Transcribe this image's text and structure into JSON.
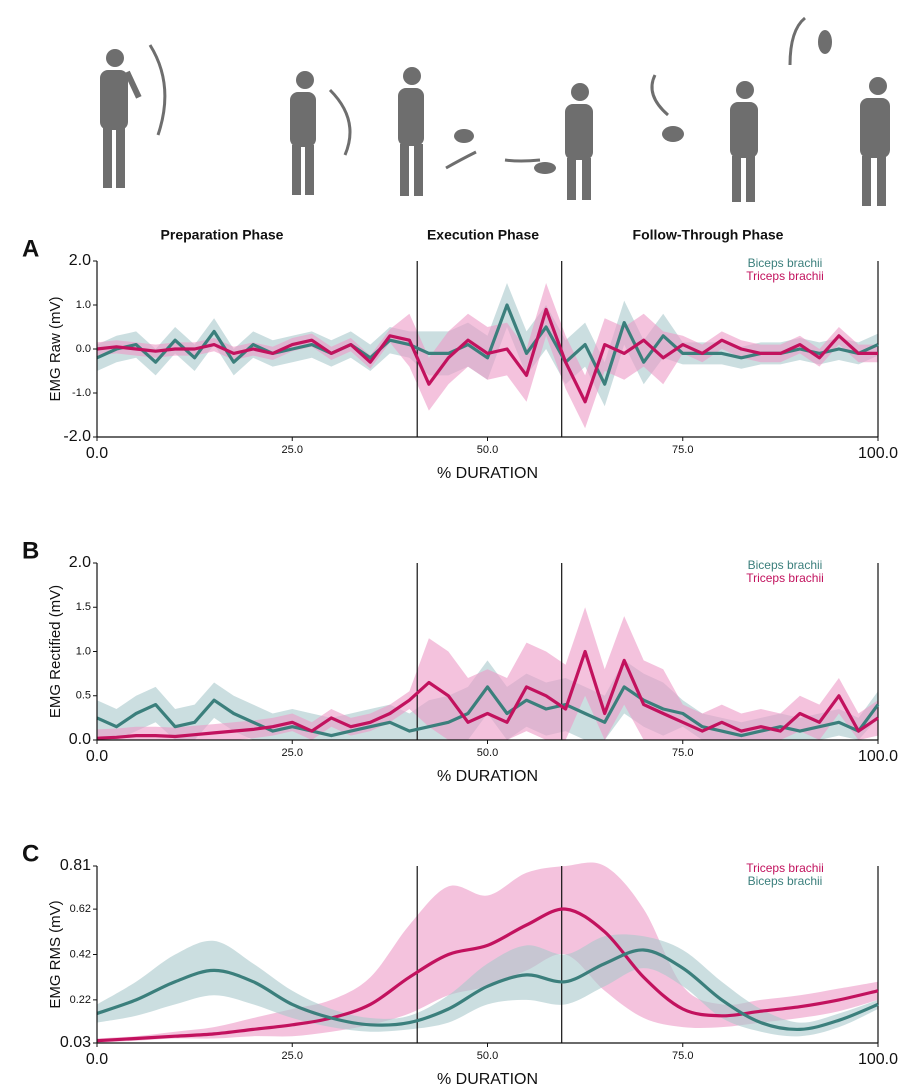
{
  "phases": [
    "Preparation Phase",
    "Execution Phase",
    "Follow-Through Phase"
  ],
  "chart_data": [
    {
      "panel": "A",
      "type": "line",
      "ylabel": "EMG Raw (mV)",
      "xlabel": "% DURATION",
      "legend": "upper right",
      "smooth": false,
      "x": [
        0,
        2.5,
        5,
        7.5,
        10,
        12.5,
        15,
        17.5,
        20,
        22.5,
        25,
        27.5,
        30,
        32.5,
        35,
        37.5,
        40,
        42.5,
        45,
        47.5,
        50,
        52.5,
        55,
        57.5,
        60,
        62.5,
        65,
        67.5,
        70,
        72.5,
        75,
        77.5,
        80,
        82.5,
        85,
        87.5,
        90,
        92.5,
        95,
        97.5,
        100
      ],
      "xlim": [
        0,
        100
      ],
      "xticks": [
        {
          "value": 0,
          "label": "0.0"
        },
        {
          "value": 25,
          "label": "25.0"
        },
        {
          "value": 50,
          "label": "50.0"
        },
        {
          "value": 75,
          "label": "75.0"
        },
        {
          "value": 100,
          "label": "100.0"
        }
      ],
      "ylim": [
        -2,
        2
      ],
      "yticks": [
        {
          "value": 2,
          "label": "2.0"
        },
        {
          "value": 1,
          "label": "1.0"
        },
        {
          "value": 0,
          "label": "0.0"
        },
        {
          "value": -1,
          "label": "-1.0"
        },
        {
          "value": -2,
          "label": "-2.0"
        }
      ],
      "vlines": [
        41,
        59.5,
        100
      ],
      "series": [
        {
          "name": "Biceps brachii",
          "color": "#3b7f7c",
          "band_color": "#a9c8cc",
          "values": [
            -0.2,
            0.0,
            0.1,
            -0.3,
            0.2,
            -0.2,
            0.4,
            -0.3,
            0.1,
            -0.1,
            0.0,
            0.1,
            -0.1,
            0.1,
            -0.2,
            0.2,
            0.1,
            -0.1,
            -0.1,
            0.1,
            -0.2,
            1.0,
            -0.1,
            0.5,
            -0.3,
            0.1,
            -0.8,
            0.6,
            -0.3,
            0.3,
            -0.1,
            -0.1,
            -0.1,
            -0.2,
            -0.1,
            -0.1,
            0.0,
            -0.1,
            0.0,
            -0.1,
            0.1
          ],
          "upper": [
            0.1,
            0.3,
            0.4,
            0.0,
            0.5,
            0.1,
            0.7,
            0.0,
            0.4,
            0.2,
            0.3,
            0.4,
            0.2,
            0.4,
            0.1,
            0.5,
            0.4,
            0.4,
            0.4,
            0.6,
            0.3,
            1.5,
            0.4,
            1.0,
            0.2,
            0.6,
            -0.3,
            1.1,
            0.2,
            0.8,
            0.15,
            0.15,
            0.15,
            0.05,
            0.15,
            0.15,
            0.25,
            0.15,
            0.25,
            0.15,
            0.35
          ],
          "lower": [
            -0.5,
            -0.3,
            -0.2,
            -0.6,
            -0.1,
            -0.5,
            0.1,
            -0.6,
            -0.2,
            -0.4,
            -0.3,
            -0.2,
            -0.4,
            -0.2,
            -0.5,
            -0.1,
            -0.2,
            -0.6,
            -0.6,
            -0.4,
            -0.7,
            0.5,
            -0.6,
            0.0,
            -0.8,
            -0.4,
            -1.3,
            0.1,
            -0.8,
            -0.2,
            -0.35,
            -0.35,
            -0.35,
            -0.45,
            -0.35,
            -0.35,
            -0.25,
            -0.35,
            -0.25,
            -0.35,
            -0.15
          ]
        },
        {
          "name": "Triceps brachii",
          "color": "#c2125e",
          "band_color": "#ec9ac6",
          "values": [
            0.0,
            0.05,
            0.0,
            -0.05,
            0.0,
            0.0,
            0.1,
            -0.1,
            0.0,
            -0.1,
            0.1,
            0.2,
            -0.1,
            0.1,
            -0.3,
            0.3,
            0.2,
            -0.8,
            -0.2,
            0.2,
            -0.1,
            0.0,
            -0.6,
            0.9,
            -0.3,
            -1.2,
            0.1,
            -0.1,
            0.2,
            -0.2,
            0.1,
            -0.1,
            0.2,
            0.0,
            -0.1,
            -0.1,
            0.1,
            -0.2,
            0.3,
            -0.1,
            -0.1
          ],
          "upper": [
            0.15,
            0.2,
            0.15,
            0.1,
            0.15,
            0.15,
            0.25,
            0.05,
            0.15,
            0.05,
            0.25,
            0.35,
            0.05,
            0.25,
            -0.15,
            0.45,
            0.8,
            -0.2,
            0.4,
            0.8,
            0.5,
            0.6,
            0.0,
            1.5,
            0.3,
            -0.6,
            0.7,
            0.5,
            0.8,
            0.4,
            0.3,
            0.1,
            0.4,
            0.2,
            0.1,
            0.1,
            0.3,
            0.0,
            0.5,
            0.1,
            0.1
          ],
          "lower": [
            -0.15,
            -0.1,
            -0.15,
            -0.2,
            -0.15,
            -0.15,
            -0.05,
            -0.25,
            -0.15,
            -0.25,
            -0.05,
            0.05,
            -0.25,
            -0.05,
            -0.45,
            0.15,
            -0.4,
            -1.4,
            -0.8,
            -0.4,
            -0.7,
            -0.6,
            -1.2,
            0.3,
            -0.9,
            -1.8,
            -0.5,
            -0.7,
            -0.4,
            -0.8,
            -0.1,
            -0.3,
            0.0,
            -0.2,
            -0.3,
            -0.3,
            -0.1,
            -0.4,
            0.1,
            -0.3,
            -0.3
          ]
        }
      ]
    },
    {
      "panel": "B",
      "type": "line",
      "ylabel": "EMG Rectified (mV)",
      "xlabel": "% DURATION",
      "legend": "upper right",
      "smooth": false,
      "x": [
        0,
        2.5,
        5,
        7.5,
        10,
        12.5,
        15,
        17.5,
        20,
        22.5,
        25,
        27.5,
        30,
        32.5,
        35,
        37.5,
        40,
        42.5,
        45,
        47.5,
        50,
        52.5,
        55,
        57.5,
        60,
        62.5,
        65,
        67.5,
        70,
        72.5,
        75,
        77.5,
        80,
        82.5,
        85,
        87.5,
        90,
        92.5,
        95,
        97.5,
        100
      ],
      "xlim": [
        0,
        100
      ],
      "xticks": [
        {
          "value": 0,
          "label": "0.0"
        },
        {
          "value": 25,
          "label": "25.0"
        },
        {
          "value": 50,
          "label": "50.0"
        },
        {
          "value": 75,
          "label": "75.0"
        },
        {
          "value": 100,
          "label": "100.0"
        }
      ],
      "ylim": [
        0,
        2
      ],
      "yticks": [
        {
          "value": 2,
          "label": "2.0"
        },
        {
          "value": 1.5,
          "label": "1.5"
        },
        {
          "value": 1,
          "label": "1.0"
        },
        {
          "value": 0.5,
          "label": "0.5"
        },
        {
          "value": 0,
          "label": "0.0"
        }
      ],
      "vlines": [
        41,
        59.5,
        100
      ],
      "series": [
        {
          "name": "Biceps brachii",
          "color": "#3b7f7c",
          "band_color": "#a9c8cc",
          "values": [
            0.25,
            0.15,
            0.3,
            0.4,
            0.15,
            0.2,
            0.45,
            0.3,
            0.2,
            0.1,
            0.15,
            0.1,
            0.05,
            0.1,
            0.15,
            0.2,
            0.1,
            0.15,
            0.2,
            0.3,
            0.6,
            0.3,
            0.45,
            0.35,
            0.4,
            0.3,
            0.2,
            0.6,
            0.45,
            0.35,
            0.3,
            0.15,
            0.1,
            0.05,
            0.1,
            0.15,
            0.1,
            0.15,
            0.2,
            0.1,
            0.4
          ],
          "upper": [
            0.45,
            0.35,
            0.5,
            0.6,
            0.35,
            0.4,
            0.65,
            0.5,
            0.4,
            0.3,
            0.35,
            0.3,
            0.25,
            0.3,
            0.35,
            0.4,
            0.3,
            0.45,
            0.5,
            0.6,
            0.9,
            0.6,
            0.75,
            0.65,
            0.7,
            0.6,
            0.5,
            0.9,
            0.75,
            0.65,
            0.45,
            0.3,
            0.25,
            0.2,
            0.25,
            0.3,
            0.25,
            0.3,
            0.35,
            0.25,
            0.55
          ],
          "lower": [
            0.05,
            0,
            0.1,
            0.2,
            0,
            0,
            0.25,
            0.1,
            0,
            0,
            0,
            0,
            0,
            0,
            0,
            0,
            0,
            0,
            0,
            0,
            0.3,
            0,
            0.15,
            0.05,
            0.1,
            0,
            0,
            0.3,
            0.15,
            0.05,
            0.15,
            0,
            0,
            0,
            0,
            0,
            0,
            0,
            0.05,
            0,
            0.25
          ]
        },
        {
          "name": "Triceps brachii",
          "color": "#c2125e",
          "band_color": "#ec9ac6",
          "values": [
            0.02,
            0.03,
            0.05,
            0.05,
            0.04,
            0.06,
            0.08,
            0.1,
            0.12,
            0.15,
            0.2,
            0.1,
            0.25,
            0.15,
            0.2,
            0.3,
            0.45,
            0.65,
            0.5,
            0.2,
            0.3,
            0.2,
            0.6,
            0.5,
            0.35,
            1.0,
            0.3,
            0.9,
            0.4,
            0.3,
            0.2,
            0.1,
            0.2,
            0.1,
            0.15,
            0.1,
            0.3,
            0.2,
            0.5,
            0.1,
            0.25
          ],
          "upper": [
            0.12,
            0.13,
            0.15,
            0.15,
            0.14,
            0.16,
            0.18,
            0.2,
            0.22,
            0.25,
            0.3,
            0.2,
            0.35,
            0.25,
            0.3,
            0.4,
            0.55,
            1.15,
            1.0,
            0.7,
            0.8,
            0.7,
            1.1,
            1.0,
            0.85,
            1.5,
            0.8,
            1.4,
            0.9,
            0.8,
            0.4,
            0.3,
            0.4,
            0.3,
            0.35,
            0.3,
            0.5,
            0.4,
            0.7,
            0.3,
            0.45
          ],
          "lower": [
            0,
            0,
            0,
            0,
            0,
            0,
            0,
            0,
            0.02,
            0.05,
            0.1,
            0,
            0.15,
            0.05,
            0.1,
            0.2,
            0.35,
            0.15,
            0,
            0,
            0,
            0,
            0.1,
            0,
            0,
            0.5,
            0,
            0.4,
            0,
            0,
            0,
            0,
            0,
            0,
            0,
            0,
            0.1,
            0,
            0.3,
            0,
            0.05
          ]
        }
      ]
    },
    {
      "panel": "C",
      "type": "line",
      "ylabel": "EMG RMS (mV)",
      "xlabel": "% DURATION",
      "legend": "upper right",
      "smooth": true,
      "x": [
        0,
        5,
        10,
        15,
        20,
        25,
        30,
        35,
        40,
        45,
        50,
        55,
        60,
        65,
        70,
        75,
        80,
        85,
        90,
        95,
        100
      ],
      "xlim": [
        0,
        100
      ],
      "xticks": [
        {
          "value": 0,
          "label": "0.0"
        },
        {
          "value": 25,
          "label": "25.0"
        },
        {
          "value": 50,
          "label": "50.0"
        },
        {
          "value": 75,
          "label": "75.0"
        },
        {
          "value": 100,
          "label": "100.0"
        }
      ],
      "ylim": [
        0.03,
        0.81
      ],
      "yticks": [
        0.81,
        0.62,
        0.42,
        0.22,
        0.03
      ],
      "vlines": [
        41,
        59.5,
        100
      ],
      "series": [
        {
          "name": "Triceps brachii",
          "color": "#c2125e",
          "band_color": "#ec9ac6",
          "values": [
            0.04,
            0.05,
            0.06,
            0.07,
            0.09,
            0.11,
            0.14,
            0.2,
            0.32,
            0.42,
            0.46,
            0.55,
            0.62,
            0.52,
            0.32,
            0.18,
            0.15,
            0.17,
            0.19,
            0.22,
            0.26
          ],
          "upper": [
            0.05,
            0.06,
            0.08,
            0.1,
            0.14,
            0.18,
            0.22,
            0.32,
            0.55,
            0.72,
            0.68,
            0.78,
            0.81,
            0.81,
            0.62,
            0.28,
            0.2,
            0.22,
            0.24,
            0.27,
            0.3
          ],
          "lower": [
            0.03,
            0.04,
            0.05,
            0.05,
            0.06,
            0.06,
            0.08,
            0.11,
            0.16,
            0.24,
            0.28,
            0.35,
            0.42,
            0.26,
            0.14,
            0.1,
            0.1,
            0.12,
            0.14,
            0.17,
            0.22
          ]
        },
        {
          "name": "Biceps brachii",
          "color": "#3b7f7c",
          "band_color": "#a9c8cc",
          "values": [
            0.16,
            0.22,
            0.3,
            0.35,
            0.3,
            0.2,
            0.14,
            0.11,
            0.12,
            0.18,
            0.28,
            0.33,
            0.3,
            0.38,
            0.44,
            0.36,
            0.22,
            0.12,
            0.09,
            0.13,
            0.2
          ],
          "upper": [
            0.2,
            0.3,
            0.42,
            0.48,
            0.38,
            0.26,
            0.18,
            0.14,
            0.15,
            0.24,
            0.38,
            0.46,
            0.42,
            0.5,
            0.5,
            0.44,
            0.3,
            0.18,
            0.12,
            0.16,
            0.22
          ],
          "lower": [
            0.12,
            0.15,
            0.2,
            0.24,
            0.2,
            0.14,
            0.1,
            0.08,
            0.09,
            0.12,
            0.2,
            0.22,
            0.2,
            0.28,
            0.36,
            0.28,
            0.14,
            0.08,
            0.06,
            0.1,
            0.18
          ]
        }
      ]
    }
  ]
}
